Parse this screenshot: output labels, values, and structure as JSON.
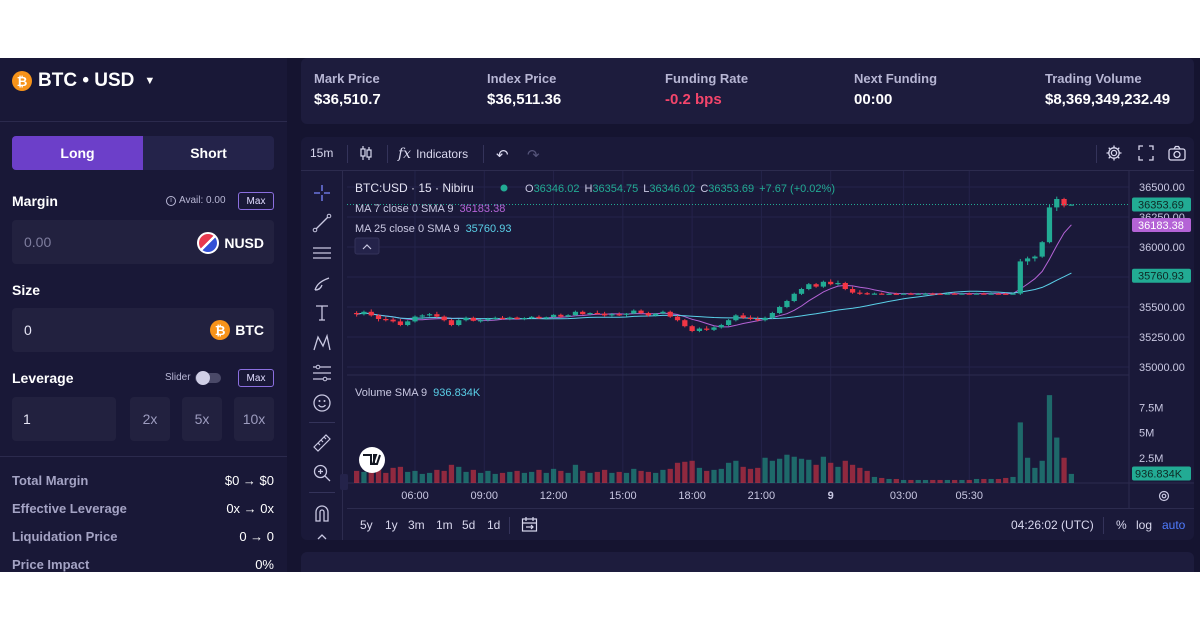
{
  "pair": {
    "label": "BTC • USD",
    "coin_glyph": "₿"
  },
  "side": {
    "long": "Long",
    "short": "Short"
  },
  "margin": {
    "label": "Margin",
    "avail": "Avail: 0.00",
    "max": "Max",
    "value": "0.00",
    "unit": "NUSD"
  },
  "size": {
    "label": "Size",
    "value": "0",
    "unit": "BTC"
  },
  "leverage": {
    "label": "Leverage",
    "slider_label": "Slider",
    "max": "Max",
    "value": "1",
    "presets": [
      "2x",
      "5x",
      "10x"
    ]
  },
  "summary": [
    {
      "k": "Total Margin",
      "v": "$0 → $0"
    },
    {
      "k": "Effective Leverage",
      "v": "0x → 0x"
    },
    {
      "k": "Liquidation Price",
      "v": "0 → 0"
    },
    {
      "k": "Price Impact",
      "v": "0%"
    }
  ],
  "stats": [
    {
      "k": "Mark Price",
      "v": "$36,510.7",
      "neg": false
    },
    {
      "k": "Index Price",
      "v": "$36,511.36",
      "neg": false
    },
    {
      "k": "Funding Rate",
      "v": "-0.2 bps",
      "neg": true
    },
    {
      "k": "Next Funding",
      "v": "00:00",
      "neg": false
    },
    {
      "k": "Trading Volume",
      "v": "$8,369,349,232.49",
      "neg": false
    }
  ],
  "toolbar": {
    "interval": "15m",
    "indicators": "Indicators"
  },
  "legend": {
    "symbol": "BTC:USD · 15 · Nibiru",
    "o_label": "O",
    "o": "36346.02",
    "h_label": "H",
    "h": "36354.75",
    "l_label": "L",
    "l": "36346.02",
    "c_label": "C",
    "c": "36353.69",
    "change": "+7.67 (+0.02%)",
    "ma7": "MA 7 close 0 SMA 9",
    "ma7_val": "36183.38",
    "ma25": "MA 25 close 0 SMA 9",
    "ma25_val": "35760.93",
    "volume": "Volume SMA 9",
    "volume_val": "936.834K"
  },
  "colors": {
    "up": "#22ab94",
    "down": "#f23645",
    "ma7": "#b463d6",
    "ma25": "#5ad0e8",
    "accent": "#6c3fc9",
    "negative": "#f4456b"
  },
  "ranges": [
    "5y",
    "1y",
    "3m",
    "1m",
    "5d",
    "1d"
  ],
  "bottom_right": {
    "time": "04:26:02 (UTC)",
    "pct": "%",
    "log": "log",
    "auto": "auto"
  },
  "chart_data": {
    "type": "candlestick",
    "price_ticks": [
      "36500.00",
      "36250.00",
      "36000.00",
      "35750.00",
      "35500.00",
      "35250.00",
      "35000.00"
    ],
    "price_ylim": [
      35000,
      36500
    ],
    "volume_ticks": [
      "7.5M",
      "5M",
      "2.5M"
    ],
    "volume_ylim": [
      0,
      10000000
    ],
    "time_ticks": [
      "06:00",
      "09:00",
      "12:00",
      "15:00",
      "18:00",
      "21:00",
      "9",
      "03:00",
      "05:30"
    ],
    "price_labels": [
      {
        "text": "36353.69",
        "value": 36353.69,
        "color": "#22ab94"
      },
      {
        "text": "36183.38",
        "value": 36183.38,
        "color": "#b463d6"
      },
      {
        "text": "35760.93",
        "value": 35760.93,
        "color": "#22ab94"
      }
    ],
    "volume_label": {
      "text": "936.834K",
      "value": 936834
    },
    "candles": [
      [
        35450,
        35465,
        35420,
        35440,
        1.2
      ],
      [
        35440,
        35470,
        35430,
        35460,
        1.1
      ],
      [
        35460,
        35480,
        35420,
        35430,
        1.4
      ],
      [
        35430,
        35440,
        35380,
        35400,
        1.3
      ],
      [
        35400,
        35420,
        35380,
        35395,
        1.0
      ],
      [
        35395,
        35410,
        35370,
        35380,
        1.5
      ],
      [
        35380,
        35400,
        35340,
        35350,
        1.6
      ],
      [
        35350,
        35390,
        35340,
        35380,
        1.1
      ],
      [
        35380,
        35430,
        35370,
        35420,
        1.2
      ],
      [
        35420,
        35440,
        35400,
        35430,
        0.9
      ],
      [
        35430,
        35450,
        35420,
        35440,
        1.0
      ],
      [
        35440,
        35460,
        35410,
        35420,
        1.3
      ],
      [
        35420,
        35430,
        35380,
        35390,
        1.2
      ],
      [
        35390,
        35400,
        35340,
        35350,
        1.8
      ],
      [
        35350,
        35400,
        35340,
        35390,
        1.6
      ],
      [
        35390,
        35420,
        35380,
        35410,
        1.1
      ],
      [
        35410,
        35420,
        35380,
        35385,
        1.3
      ],
      [
        35385,
        35400,
        35370,
        35390,
        1.0
      ],
      [
        35390,
        35410,
        35380,
        35400,
        1.2
      ],
      [
        35400,
        35420,
        35390,
        35410,
        0.9
      ],
      [
        35410,
        35425,
        35395,
        35400,
        1.0
      ],
      [
        35400,
        35420,
        35390,
        35412,
        1.1
      ],
      [
        35412,
        35420,
        35395,
        35400,
        1.2
      ],
      [
        35400,
        35415,
        35390,
        35408,
        1.0
      ],
      [
        35408,
        35425,
        35400,
        35418,
        1.1
      ],
      [
        35418,
        35430,
        35400,
        35405,
        1.3
      ],
      [
        35405,
        35420,
        35395,
        35415,
        1.0
      ],
      [
        35415,
        35440,
        35410,
        35435,
        1.4
      ],
      [
        35435,
        35445,
        35410,
        35420,
        1.2
      ],
      [
        35420,
        35440,
        35415,
        35432,
        1.0
      ],
      [
        35432,
        35470,
        35425,
        35460,
        1.8
      ],
      [
        35460,
        35470,
        35435,
        35440,
        1.2
      ],
      [
        35440,
        35455,
        35430,
        35450,
        1.0
      ],
      [
        35450,
        35470,
        35440,
        35445,
        1.1
      ],
      [
        35445,
        35460,
        35420,
        35430,
        1.3
      ],
      [
        35430,
        35450,
        35420,
        35440,
        1.0
      ],
      [
        35440,
        35455,
        35425,
        35435,
        1.1
      ],
      [
        35435,
        35450,
        35420,
        35445,
        1.0
      ],
      [
        35445,
        35480,
        35440,
        35470,
        1.4
      ],
      [
        35470,
        35480,
        35440,
        35450,
        1.2
      ],
      [
        35450,
        35460,
        35420,
        35430,
        1.1
      ],
      [
        35430,
        35450,
        35420,
        35445,
        1.0
      ],
      [
        35445,
        35470,
        35440,
        35460,
        1.3
      ],
      [
        35460,
        35470,
        35410,
        35420,
        1.4
      ],
      [
        35420,
        35430,
        35380,
        35390,
        2.0
      ],
      [
        35390,
        35400,
        35330,
        35340,
        2.1
      ],
      [
        35340,
        35350,
        35290,
        35300,
        2.2
      ],
      [
        35300,
        35330,
        35290,
        35320,
        1.5
      ],
      [
        35320,
        35340,
        35300,
        35310,
        1.2
      ],
      [
        35310,
        35340,
        35300,
        35330,
        1.3
      ],
      [
        35330,
        35360,
        35320,
        35350,
        1.4
      ],
      [
        35350,
        35400,
        35340,
        35390,
        2.0
      ],
      [
        35390,
        35440,
        35380,
        35430,
        2.2
      ],
      [
        35430,
        35450,
        35400,
        35410,
        1.6
      ],
      [
        35410,
        35430,
        35390,
        35400,
        1.4
      ],
      [
        35400,
        35420,
        35380,
        35390,
        1.5
      ],
      [
        35390,
        35420,
        35380,
        35410,
        2.5
      ],
      [
        35410,
        35460,
        35400,
        35450,
        2.2
      ],
      [
        35450,
        35510,
        35440,
        35500,
        2.4
      ],
      [
        35500,
        35560,
        35490,
        35550,
        2.8
      ],
      [
        35550,
        35620,
        35540,
        35610,
        2.6
      ],
      [
        35610,
        35660,
        35600,
        35650,
        2.4
      ],
      [
        35650,
        35700,
        35640,
        35690,
        2.3
      ],
      [
        35690,
        35700,
        35660,
        35670,
        1.8
      ],
      [
        35670,
        35720,
        35660,
        35710,
        2.6
      ],
      [
        35710,
        35730,
        35680,
        35690,
        2.0
      ],
      [
        35690,
        35720,
        35680,
        35700,
        1.6
      ],
      [
        35700,
        35710,
        35640,
        35650,
        2.2
      ],
      [
        35650,
        35670,
        35610,
        35620,
        1.8
      ],
      [
        35620,
        35640,
        35600,
        35615,
        1.5
      ],
      [
        35615,
        35625,
        35600,
        35610,
        1.2
      ],
      [
        35610,
        35620,
        35605,
        35612,
        0.6
      ],
      [
        35612,
        35620,
        35605,
        35610,
        0.5
      ],
      [
        35610,
        35618,
        35604,
        35611,
        0.4
      ],
      [
        35611,
        35619,
        35603,
        35610,
        0.4
      ],
      [
        35610,
        35616,
        35604,
        35612,
        0.3
      ],
      [
        35612,
        35620,
        35606,
        35610,
        0.3
      ],
      [
        35610,
        35617,
        35604,
        35611,
        0.3
      ],
      [
        35611,
        35618,
        35605,
        35612,
        0.3
      ],
      [
        35612,
        35619,
        35606,
        35611,
        0.3
      ],
      [
        35611,
        35617,
        35605,
        35610,
        0.3
      ],
      [
        35610,
        35618,
        35604,
        35612,
        0.3
      ],
      [
        35612,
        35619,
        35605,
        35611,
        0.3
      ],
      [
        35611,
        35618,
        35606,
        35612,
        0.3
      ],
      [
        35612,
        35620,
        35605,
        35611,
        0.3
      ],
      [
        35611,
        35618,
        35604,
        35612,
        0.4
      ],
      [
        35612,
        35620,
        35606,
        35611,
        0.4
      ],
      [
        35611,
        35619,
        35605,
        35612,
        0.4
      ],
      [
        35612,
        35618,
        35605,
        35611,
        0.4
      ],
      [
        35611,
        35618,
        35604,
        35610,
        0.5
      ],
      [
        35610,
        35620,
        35605,
        35612,
        0.6
      ],
      [
        35612,
        35900,
        35600,
        35880,
        6.0
      ],
      [
        35880,
        35920,
        35850,
        35905,
        2.5
      ],
      [
        35905,
        35930,
        35880,
        35920,
        1.5
      ],
      [
        35920,
        36050,
        35910,
        36040,
        2.2
      ],
      [
        36040,
        36350,
        36030,
        36330,
        8.7
      ],
      [
        36330,
        36420,
        36300,
        36400,
        4.5
      ],
      [
        36400,
        36410,
        36330,
        36346,
        2.5
      ],
      [
        36346,
        36355,
        36346,
        36354,
        0.9
      ]
    ]
  }
}
